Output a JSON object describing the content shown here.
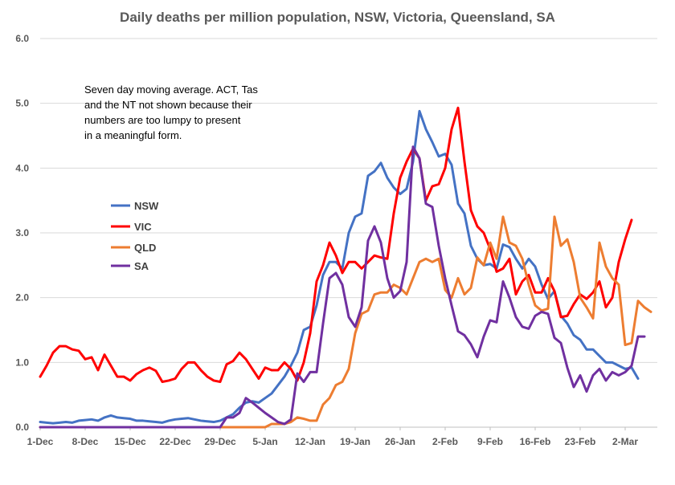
{
  "chart_data": {
    "type": "line",
    "title": "Daily deaths per million population, NSW, Victoria, Queensland, SA",
    "xlabel": "",
    "ylabel": "",
    "ylim": [
      0,
      6
    ],
    "yticks": [
      "0.0",
      "1.0",
      "2.0",
      "3.0",
      "4.0",
      "5.0",
      "6.0"
    ],
    "grid": true,
    "legend_position": "left-middle",
    "annotation": [
      "Seven day moving average. ACT, Tas",
      "and the NT not shown because their",
      "numbers are too lumpy to present",
      "in a meaningful form."
    ],
    "x_tick_labels": [
      "1-Dec",
      "8-Dec",
      "15-Dec",
      "22-Dec",
      "29-Dec",
      "5-Jan",
      "12-Jan",
      "19-Jan",
      "26-Jan",
      "2-Feb",
      "9-Feb",
      "16-Feb",
      "23-Feb",
      "2-Mar"
    ],
    "x_tick_days": [
      0,
      7,
      14,
      21,
      28,
      35,
      42,
      49,
      56,
      63,
      70,
      77,
      84,
      91
    ],
    "x_day_count": 96,
    "series": [
      {
        "name": "NSW",
        "color": "#4472c4",
        "values": [
          0.08,
          0.07,
          0.06,
          0.07,
          0.08,
          0.07,
          0.1,
          0.11,
          0.12,
          0.1,
          0.15,
          0.18,
          0.15,
          0.14,
          0.13,
          0.1,
          0.1,
          0.09,
          0.08,
          0.07,
          0.1,
          0.12,
          0.13,
          0.14,
          0.12,
          0.1,
          0.09,
          0.08,
          0.1,
          0.15,
          0.2,
          0.3,
          0.38,
          0.4,
          0.38,
          0.45,
          0.52,
          0.65,
          0.78,
          0.95,
          1.15,
          1.5,
          1.55,
          1.88,
          2.35,
          2.55,
          2.55,
          2.45,
          3.0,
          3.25,
          3.3,
          3.88,
          3.95,
          4.08,
          3.85,
          3.7,
          3.6,
          3.68,
          4.1,
          4.88,
          4.6,
          4.4,
          4.18,
          4.22,
          4.05,
          3.45,
          3.3,
          2.8,
          2.6,
          2.5,
          2.52,
          2.45,
          2.82,
          2.78,
          2.6,
          2.45,
          2.6,
          2.48,
          2.2,
          1.98,
          2.1,
          1.72,
          1.6,
          1.42,
          1.35,
          1.2,
          1.2,
          1.1,
          1.0,
          1.0,
          0.95,
          0.9,
          0.92,
          0.75
        ]
      },
      {
        "name": "VIC",
        "color": "#ff0000",
        "values": [
          0.78,
          0.95,
          1.15,
          1.25,
          1.25,
          1.2,
          1.18,
          1.05,
          1.08,
          0.88,
          1.12,
          0.95,
          0.78,
          0.78,
          0.72,
          0.82,
          0.88,
          0.92,
          0.87,
          0.7,
          0.72,
          0.75,
          0.9,
          1.0,
          1.0,
          0.88,
          0.78,
          0.72,
          0.7,
          0.97,
          1.02,
          1.15,
          1.05,
          0.9,
          0.75,
          0.92,
          0.88,
          0.88,
          1.0,
          0.9,
          0.72,
          1.0,
          1.45,
          2.25,
          2.5,
          2.85,
          2.65,
          2.38,
          2.55,
          2.55,
          2.45,
          2.55,
          2.65,
          2.62,
          2.6,
          3.3,
          3.85,
          4.1,
          4.3,
          4.15,
          3.5,
          3.72,
          3.75,
          4.0,
          4.6,
          4.93,
          4.1,
          3.35,
          3.1,
          3.0,
          2.75,
          2.4,
          2.45,
          2.6,
          2.05,
          2.25,
          2.35,
          2.08,
          2.08,
          2.3,
          2.1,
          1.7,
          1.72,
          1.9,
          2.05,
          1.98,
          2.08,
          2.25,
          1.85,
          2.0,
          2.55,
          2.9,
          3.2
        ]
      },
      {
        "name": "QLD",
        "color": "#ed7d31",
        "values": [
          0,
          0,
          0,
          0,
          0,
          0,
          0,
          0,
          0,
          0,
          0,
          0,
          0,
          0,
          0,
          0,
          0,
          0,
          0,
          0,
          0,
          0,
          0,
          0,
          0,
          0,
          0,
          0,
          0,
          0,
          0,
          0,
          0,
          0,
          0,
          0,
          0.05,
          0.05,
          0.05,
          0.08,
          0.15,
          0.13,
          0.1,
          0.1,
          0.35,
          0.45,
          0.65,
          0.7,
          0.9,
          1.45,
          1.75,
          1.8,
          2.05,
          2.08,
          2.08,
          2.2,
          2.15,
          2.05,
          2.3,
          2.55,
          2.6,
          2.55,
          2.6,
          2.12,
          2.0,
          2.3,
          2.05,
          2.15,
          2.62,
          2.5,
          2.85,
          2.6,
          3.25,
          2.85,
          2.8,
          2.6,
          2.2,
          1.88,
          1.8,
          1.83,
          3.25,
          2.8,
          2.9,
          2.55,
          2.0,
          1.85,
          1.68,
          2.85,
          2.48,
          2.3,
          2.2,
          1.27,
          1.3,
          1.95,
          1.85,
          1.78
        ]
      },
      {
        "name": "SA",
        "color": "#7030a0",
        "values": [
          0,
          0,
          0,
          0,
          0,
          0,
          0,
          0,
          0,
          0,
          0,
          0,
          0,
          0,
          0,
          0,
          0,
          0,
          0,
          0,
          0,
          0,
          0,
          0,
          0,
          0,
          0,
          0,
          0,
          0.15,
          0.15,
          0.22,
          0.45,
          0.38,
          0.3,
          0.22,
          0.15,
          0.08,
          0.05,
          0.12,
          0.83,
          0.7,
          0.85,
          0.85,
          1.6,
          2.3,
          2.38,
          2.2,
          1.7,
          1.55,
          1.85,
          2.88,
          3.1,
          2.85,
          2.3,
          2.0,
          2.1,
          2.55,
          4.33,
          4.15,
          3.45,
          3.4,
          2.8,
          2.3,
          1.88,
          1.48,
          1.42,
          1.28,
          1.08,
          1.4,
          1.65,
          1.62,
          2.25,
          2.0,
          1.7,
          1.55,
          1.52,
          1.72,
          1.78,
          1.75,
          1.38,
          1.3,
          0.92,
          0.62,
          0.8,
          0.55,
          0.8,
          0.9,
          0.72,
          0.85,
          0.8,
          0.85,
          0.95,
          1.4,
          1.4
        ]
      }
    ]
  }
}
